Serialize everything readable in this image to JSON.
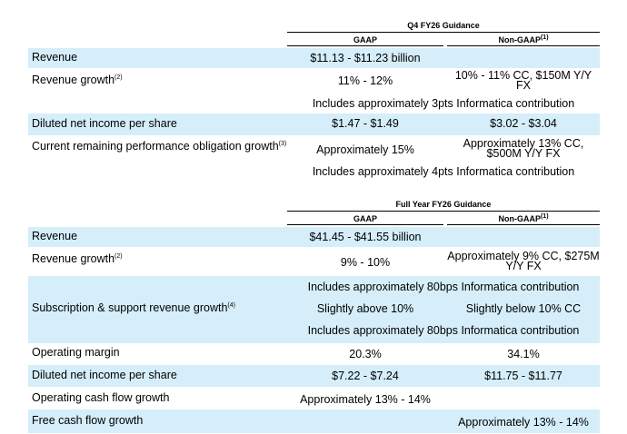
{
  "q4": {
    "title": "Q4 FY26 Guidance",
    "col_gaap": "GAAP",
    "col_nongaap": "Non-GAAP",
    "col_nongaap_note": "(1)",
    "rows": {
      "revenue": {
        "label": "Revenue",
        "gaap": "$11.13 - $11.23 billion"
      },
      "rev_growth": {
        "label": "Revenue growth",
        "note": "(2)",
        "gaap": "11% - 12%",
        "nongaap": "10% - 11% CC, $150M Y/Y FX"
      },
      "rev_growth_note": {
        "text": "Includes approximately 3pts Informatica contribution"
      },
      "eps": {
        "label": "Diluted net income per share",
        "gaap": "$1.47 - $1.49",
        "nongaap": "$3.02 - $3.04"
      },
      "crpo": {
        "label": "Current remaining performance obligation growth",
        "note": "(3)",
        "gaap": "Approximately 15%",
        "nongaap": "Approximately 13% CC, $500M Y/Y FX"
      },
      "crpo_note": {
        "text": "Includes approximately 4pts Informatica contribution"
      }
    }
  },
  "fy": {
    "title": "Full Year FY26 Guidance",
    "col_gaap": "GAAP",
    "col_nongaap": "Non-GAAP",
    "col_nongaap_note": "(1)",
    "rows": {
      "revenue": {
        "label": "Revenue",
        "gaap": "$41.45 - $41.55 billion"
      },
      "rev_growth": {
        "label": "Revenue growth",
        "note": "(2)",
        "gaap": "9% - 10%",
        "nongaap": "Approximately 9% CC, $275M Y/Y FX"
      },
      "rev_growth_note": {
        "text": "Includes approximately 80bps Informatica contribution"
      },
      "subs": {
        "label": "Subscription & support revenue growth",
        "note": "(4)",
        "gaap": "Slightly above 10%",
        "nongaap": "Slightly below 10% CC"
      },
      "subs_note": {
        "text": "Includes approximately 80bps Informatica contribution"
      },
      "op_margin": {
        "label": "Operating margin",
        "gaap": "20.3%",
        "nongaap": "34.1%"
      },
      "eps": {
        "label": "Diluted net income per share",
        "gaap": "$7.22 - $7.24",
        "nongaap": "$11.75 - $11.77"
      },
      "ocf": {
        "label": "Operating cash flow growth",
        "gaap": "Approximately 13% - 14%"
      },
      "fcf": {
        "label": "Free cash flow growth",
        "nongaap": "Approximately 13% - 14%"
      }
    }
  }
}
